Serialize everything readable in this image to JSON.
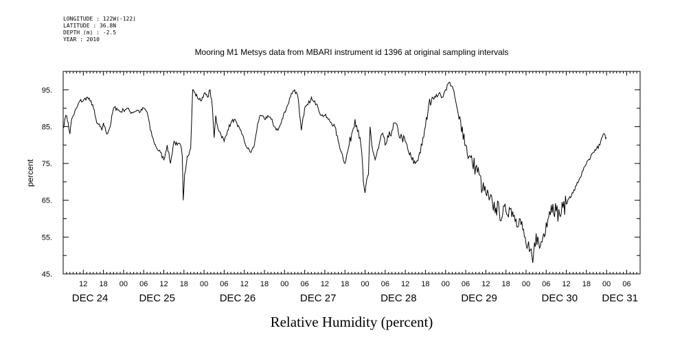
{
  "header": {
    "lines": [
      "LONGITUDE : 122W(-122)",
      "LATITUDE : 36.8N",
      "DEPTH (m) : -2.5",
      "YEAR : 2010"
    ]
  },
  "colors": {
    "line": "#000000",
    "background": "#ffffff",
    "axis": "#000000"
  },
  "chart_data": {
    "type": "line",
    "title": "Mooring M1 Metsys data from MBARI instrument id 1396 at original sampling intervals",
    "xlabel": "Relative Humidity (percent)",
    "ylabel": "percent",
    "ylim": [
      45,
      100
    ],
    "xlim_hours": [
      0,
      172
    ],
    "x_start": "2010-12-23 06:00",
    "y_ticks": [
      "95.",
      "85.",
      "75.",
      "65.",
      "55.",
      "45."
    ],
    "y_tick_values": [
      95,
      85,
      75,
      65,
      55,
      45
    ],
    "x_hour_ticks": [
      {
        "h": 6,
        "label": "12"
      },
      {
        "h": 12,
        "label": "18"
      },
      {
        "h": 18,
        "label": "00"
      },
      {
        "h": 24,
        "label": "06"
      },
      {
        "h": 30,
        "label": "12"
      },
      {
        "h": 36,
        "label": "18"
      },
      {
        "h": 42,
        "label": "00"
      },
      {
        "h": 48,
        "label": "06"
      },
      {
        "h": 54,
        "label": "12"
      },
      {
        "h": 60,
        "label": "18"
      },
      {
        "h": 66,
        "label": "00"
      },
      {
        "h": 72,
        "label": "06"
      },
      {
        "h": 78,
        "label": "12"
      },
      {
        "h": 84,
        "label": "18"
      },
      {
        "h": 90,
        "label": "00"
      },
      {
        "h": 96,
        "label": "06"
      },
      {
        "h": 102,
        "label": "12"
      },
      {
        "h": 108,
        "label": "18"
      },
      {
        "h": 114,
        "label": "00"
      },
      {
        "h": 120,
        "label": "06"
      },
      {
        "h": 126,
        "label": "12"
      },
      {
        "h": 132,
        "label": "18"
      },
      {
        "h": 138,
        "label": "00"
      },
      {
        "h": 144,
        "label": "06"
      },
      {
        "h": 150,
        "label": "12"
      },
      {
        "h": 156,
        "label": "18"
      },
      {
        "h": 162,
        "label": "00"
      },
      {
        "h": 168,
        "label": "06"
      }
    ],
    "day_labels": [
      {
        "h": 8,
        "label": "DEC 24"
      },
      {
        "h": 28,
        "label": "DEC 25"
      },
      {
        "h": 52,
        "label": "DEC 26"
      },
      {
        "h": 76,
        "label": "DEC 27"
      },
      {
        "h": 100,
        "label": "DEC 28"
      },
      {
        "h": 124,
        "label": "DEC 29"
      },
      {
        "h": 148,
        "label": "DEC 30"
      },
      {
        "h": 166,
        "label": "DEC 31"
      }
    ],
    "series": [
      {
        "points": [
          [
            0,
            84.5
          ],
          [
            0.5,
            87
          ],
          [
            1,
            88
          ],
          [
            1.5,
            86
          ],
          [
            2,
            83
          ],
          [
            2.5,
            87
          ],
          [
            3,
            88
          ],
          [
            4,
            90
          ],
          [
            5,
            92
          ],
          [
            6,
            92
          ],
          [
            7,
            93
          ],
          [
            8,
            92
          ],
          [
            8.8,
            91
          ],
          [
            9.5,
            88
          ],
          [
            10,
            86
          ],
          [
            11,
            85
          ],
          [
            11.5,
            84
          ],
          [
            12,
            86
          ],
          [
            13,
            83
          ],
          [
            14,
            85
          ],
          [
            15,
            90
          ],
          [
            16,
            90
          ],
          [
            17,
            89
          ],
          [
            18,
            89.5
          ],
          [
            19,
            90
          ],
          [
            20,
            89
          ],
          [
            21,
            89
          ],
          [
            22,
            89.5
          ],
          [
            23,
            89
          ],
          [
            24,
            90
          ],
          [
            25,
            89
          ],
          [
            25.5,
            87
          ],
          [
            26,
            84
          ],
          [
            27,
            81
          ],
          [
            28,
            79
          ],
          [
            29,
            78
          ],
          [
            30,
            76
          ],
          [
            31,
            80
          ],
          [
            32,
            75
          ],
          [
            33,
            81
          ],
          [
            34,
            80
          ],
          [
            35,
            80
          ],
          [
            35.5,
            77
          ],
          [
            35.8,
            65
          ],
          [
            36.2,
            72
          ],
          [
            37,
            77
          ],
          [
            38,
            79
          ],
          [
            38.6,
            95
          ],
          [
            40,
            93
          ],
          [
            41,
            92
          ],
          [
            42,
            94
          ],
          [
            43,
            93
          ],
          [
            43.8,
            95
          ],
          [
            44.5,
            90
          ],
          [
            45,
            82
          ],
          [
            45.5,
            88
          ],
          [
            46,
            85
          ],
          [
            47,
            83
          ],
          [
            48,
            81
          ],
          [
            49,
            84
          ],
          [
            50,
            86
          ],
          [
            51,
            87
          ],
          [
            52,
            85
          ],
          [
            53,
            84
          ],
          [
            54,
            81
          ],
          [
            55,
            79
          ],
          [
            56,
            78
          ],
          [
            57,
            80
          ],
          [
            58,
            86
          ],
          [
            59,
            88
          ],
          [
            60,
            87
          ],
          [
            61,
            88
          ],
          [
            62,
            87
          ],
          [
            63,
            85
          ],
          [
            64,
            84
          ],
          [
            65,
            86
          ],
          [
            66,
            89
          ],
          [
            67,
            91
          ],
          [
            68,
            94
          ],
          [
            69,
            95
          ],
          [
            70,
            93
          ],
          [
            70.5,
            88
          ],
          [
            71,
            84
          ],
          [
            72,
            90
          ],
          [
            73,
            91
          ],
          [
            74,
            93
          ],
          [
            75,
            92
          ],
          [
            76,
            90
          ],
          [
            77,
            88
          ],
          [
            78,
            88
          ],
          [
            79,
            87
          ],
          [
            80,
            86
          ],
          [
            81,
            85
          ],
          [
            82,
            81
          ],
          [
            83,
            78
          ],
          [
            84,
            75
          ],
          [
            85,
            79
          ],
          [
            86,
            83
          ],
          [
            87,
            87
          ],
          [
            88,
            84
          ],
          [
            89,
            78
          ],
          [
            89.5,
            70
          ],
          [
            90,
            67
          ],
          [
            91,
            72
          ],
          [
            91.5,
            85
          ],
          [
            92,
            80
          ],
          [
            93,
            76
          ],
          [
            94,
            79
          ],
          [
            95,
            83
          ],
          [
            96,
            80
          ],
          [
            97,
            82
          ],
          [
            98,
            84
          ],
          [
            99,
            86
          ],
          [
            100,
            83
          ],
          [
            101,
            82
          ],
          [
            102,
            81
          ],
          [
            103,
            78
          ],
          [
            104,
            76
          ],
          [
            105,
            75
          ],
          [
            106,
            77
          ],
          [
            107,
            80
          ],
          [
            108,
            85
          ],
          [
            109,
            91
          ],
          [
            110,
            93
          ],
          [
            111,
            93
          ],
          [
            112,
            94
          ],
          [
            113,
            93
          ],
          [
            113.5,
            94
          ],
          [
            114,
            95
          ],
          [
            115,
            97
          ],
          [
            116,
            96
          ],
          [
            117,
            92
          ],
          [
            118,
            87
          ],
          [
            119,
            85
          ],
          [
            120,
            80
          ],
          [
            121,
            77
          ],
          [
            122,
            75
          ],
          [
            123,
            74
          ],
          [
            124,
            72
          ],
          [
            125,
            68
          ],
          [
            126,
            67
          ],
          [
            127,
            65
          ],
          [
            128,
            64
          ],
          [
            129,
            63
          ],
          [
            130,
            62
          ],
          [
            131,
            61
          ],
          [
            132,
            62
          ],
          [
            133,
            63
          ],
          [
            134,
            62
          ],
          [
            135,
            60
          ],
          [
            136,
            60
          ],
          [
            137,
            57
          ],
          [
            138,
            53
          ],
          [
            139,
            51
          ],
          [
            140,
            48
          ],
          [
            141,
            56
          ],
          [
            142,
            52
          ],
          [
            143,
            55
          ],
          [
            144,
            59
          ],
          [
            145,
            62
          ],
          [
            146,
            64
          ],
          [
            147,
            62
          ],
          [
            148,
            61
          ],
          [
            149,
            63
          ],
          [
            150,
            64
          ],
          [
            151,
            66
          ],
          [
            152,
            67
          ],
          [
            153,
            69
          ],
          [
            154,
            71
          ],
          [
            155,
            73
          ],
          [
            156,
            75
          ],
          [
            157,
            76
          ],
          [
            158,
            78
          ],
          [
            159,
            79
          ],
          [
            160,
            80
          ],
          [
            161,
            83
          ],
          [
            162,
            82
          ]
        ]
      }
    ]
  }
}
